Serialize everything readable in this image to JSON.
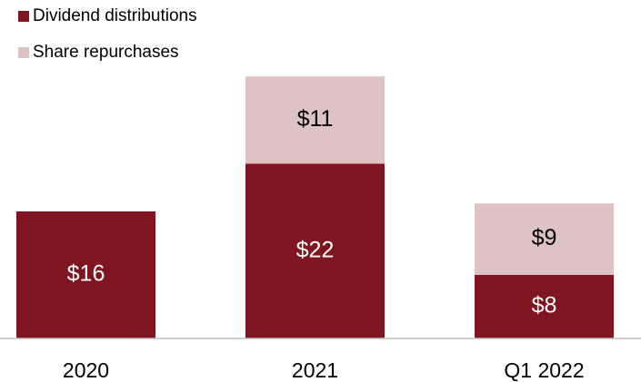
{
  "chart_data": {
    "type": "stacked_bar",
    "categories": [
      "2020",
      "2021",
      "Q1 2022"
    ],
    "series": [
      {
        "name": "Dividend distributions",
        "color": "#7f1520",
        "label_color": "#ffffff",
        "values": [
          16,
          22,
          8
        ],
        "value_labels": [
          "$16",
          "$22",
          "$8"
        ]
      },
      {
        "name": "Share repurchases",
        "color": "#dfc2c4",
        "label_color": "#000000",
        "values": [
          null,
          11,
          9
        ],
        "value_labels": [
          null,
          "$11",
          "$9"
        ]
      }
    ],
    "legend": "top-left"
  }
}
